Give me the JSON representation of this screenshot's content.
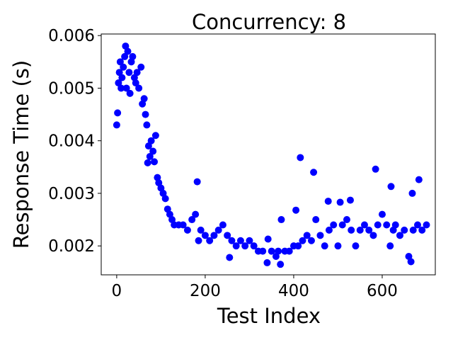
{
  "chart_data": {
    "type": "scatter",
    "title": "Concurrency: 8",
    "x_label": "Test Index",
    "y_label": "Response Time (s)",
    "color": "#0000ff",
    "xlim": [
      -35,
      720
    ],
    "ylim": [
      0.00145,
      0.00603
    ],
    "xticks": [
      0,
      200,
      400,
      600
    ],
    "yticks": [
      0.002,
      0.003,
      0.004,
      0.005,
      0.006
    ],
    "x": [
      0,
      2,
      4,
      6,
      8,
      10,
      12,
      15,
      18,
      20,
      22,
      25,
      28,
      30,
      33,
      36,
      40,
      43,
      46,
      50,
      55,
      58,
      62,
      65,
      68,
      70,
      72,
      75,
      78,
      82,
      85,
      88,
      92,
      95,
      100,
      105,
      110,
      115,
      120,
      125,
      130,
      140,
      150,
      160,
      170,
      178,
      182,
      185,
      190,
      200,
      210,
      220,
      230,
      240,
      250,
      255,
      260,
      270,
      280,
      290,
      300,
      310,
      320,
      330,
      340,
      342,
      350,
      360,
      365,
      370,
      372,
      380,
      390,
      400,
      405,
      410,
      415,
      420,
      430,
      440,
      445,
      450,
      460,
      470,
      478,
      480,
      490,
      500,
      505,
      510,
      520,
      528,
      530,
      540,
      550,
      560,
      570,
      580,
      585,
      590,
      600,
      610,
      618,
      620,
      625,
      630,
      640,
      650,
      660,
      665,
      668,
      670,
      680,
      683,
      690,
      700
    ],
    "values": [
      0.0043,
      0.00453,
      0.0051,
      0.0053,
      0.0055,
      0.005,
      0.0052,
      0.0054,
      0.0056,
      0.0058,
      0.005,
      0.0057,
      0.0053,
      0.0049,
      0.0055,
      0.0056,
      0.0052,
      0.0051,
      0.0053,
      0.005,
      0.0054,
      0.0047,
      0.0048,
      0.0045,
      0.0043,
      0.00358,
      0.0039,
      0.0037,
      0.004,
      0.0038,
      0.0036,
      0.0041,
      0.0033,
      0.0032,
      0.0031,
      0.003,
      0.0029,
      0.0027,
      0.0026,
      0.0025,
      0.0024,
      0.0024,
      0.0024,
      0.0023,
      0.0025,
      0.0026,
      0.00322,
      0.0021,
      0.0023,
      0.0022,
      0.0021,
      0.0022,
      0.0023,
      0.0024,
      0.0022,
      0.00178,
      0.0021,
      0.002,
      0.0021,
      0.002,
      0.0021,
      0.002,
      0.0019,
      0.0019,
      0.00168,
      0.00213,
      0.0019,
      0.0018,
      0.0019,
      0.00165,
      0.0025,
      0.0019,
      0.0019,
      0.002,
      0.00268,
      0.002,
      0.00368,
      0.0021,
      0.0022,
      0.0021,
      0.0034,
      0.0025,
      0.0022,
      0.002,
      0.00285,
      0.0023,
      0.0024,
      0.002,
      0.00283,
      0.0024,
      0.0025,
      0.00287,
      0.0023,
      0.002,
      0.0023,
      0.0024,
      0.0023,
      0.0022,
      0.00346,
      0.0024,
      0.0026,
      0.0024,
      0.002,
      0.00313,
      0.0023,
      0.0024,
      0.0022,
      0.0023,
      0.0018,
      0.0017,
      0.003,
      0.0023,
      0.0024,
      0.00326,
      0.0023,
      0.0024
    ]
  }
}
